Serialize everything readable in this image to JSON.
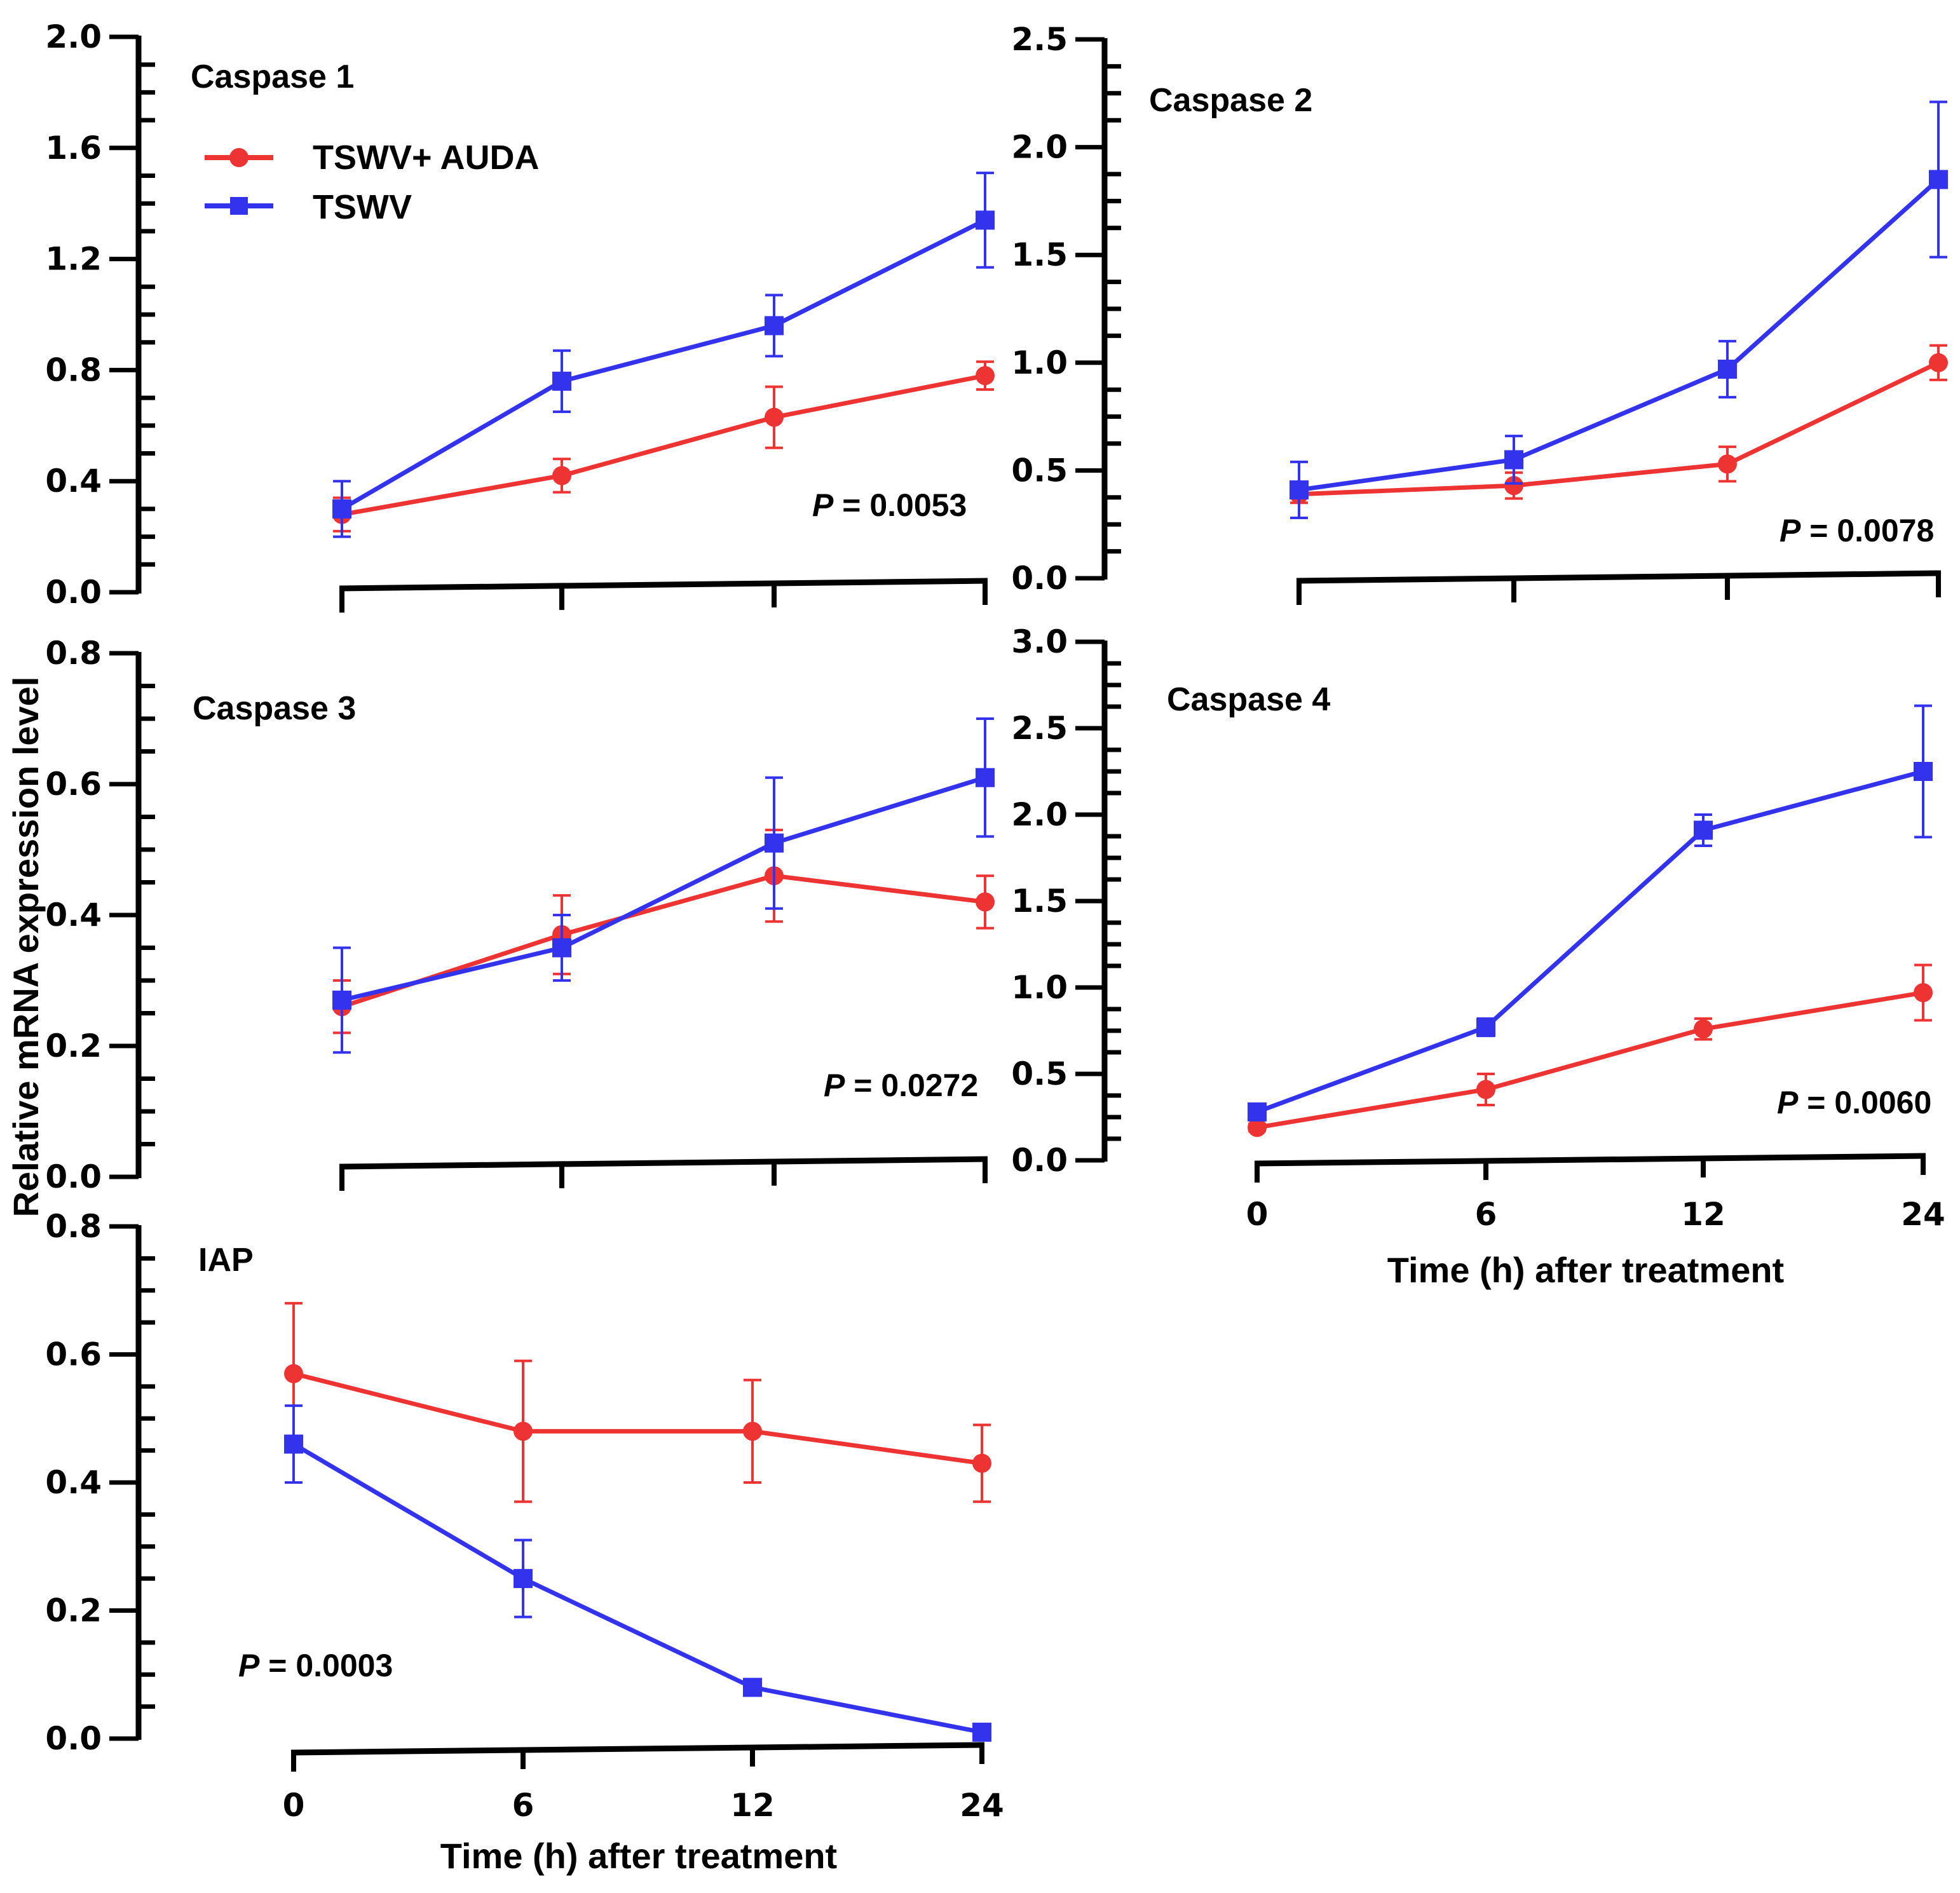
{
  "chart_data": {
    "y_axis_title": "Relative mRNA expression level",
    "x_axis_title": "Time (h) after treatment",
    "legend": [
      {
        "name": "TSWV+ AUDA",
        "color": "#ee3333",
        "marker": "circle"
      },
      {
        "name": "TSWV",
        "color": "#3333ee",
        "marker": "square"
      }
    ],
    "panels": [
      {
        "id": "caspase1",
        "type": "line",
        "title": "Caspase 1",
        "p_label": "P",
        "p_text": " = 0.0053",
        "x": [
          "0",
          "6",
          "12",
          "24"
        ],
        "show_x_tick_labels": false,
        "ylim": [
          0,
          2.0
        ],
        "yticks": [
          "0.0",
          "0.4",
          "0.8",
          "1.2",
          "1.6",
          "2.0"
        ],
        "series": [
          {
            "name": "TSWV+ AUDA",
            "values": [
              0.28,
              0.42,
              0.63,
              0.78
            ],
            "errors": [
              0.06,
              0.06,
              0.11,
              0.05
            ]
          },
          {
            "name": "TSWV",
            "values": [
              0.3,
              0.76,
              0.96,
              1.34
            ],
            "errors": [
              0.1,
              0.11,
              0.11,
              0.17
            ]
          }
        ]
      },
      {
        "id": "caspase2",
        "type": "line",
        "title": "Caspase 2",
        "p_label": "P",
        "p_text": " = 0.0078",
        "x": [
          "0",
          "6",
          "12",
          "24"
        ],
        "show_x_tick_labels": false,
        "ylim": [
          0,
          2.5
        ],
        "yticks": [
          "0.0",
          "0.5",
          "1.0",
          "1.5",
          "2.0",
          "2.5"
        ],
        "series": [
          {
            "name": "TSWV+ AUDA",
            "values": [
              0.39,
              0.43,
              0.53,
              1.0
            ],
            "errors": [
              0.04,
              0.06,
              0.08,
              0.08
            ]
          },
          {
            "name": "TSWV",
            "values": [
              0.41,
              0.55,
              0.97,
              1.85
            ],
            "errors": [
              0.13,
              0.11,
              0.13,
              0.36
            ]
          }
        ]
      },
      {
        "id": "caspase3",
        "type": "line",
        "title": "Caspase 3",
        "p_label": "P",
        "p_text": " = 0.0272",
        "x": [
          "0",
          "6",
          "12",
          "24"
        ],
        "show_x_tick_labels": false,
        "ylim": [
          0,
          0.8
        ],
        "yticks": [
          "0.0",
          "0.2",
          "0.4",
          "0.6",
          "0.8"
        ],
        "series": [
          {
            "name": "TSWV+ AUDA",
            "values": [
              0.26,
              0.37,
              0.46,
              0.42
            ],
            "errors": [
              0.04,
              0.06,
              0.07,
              0.04
            ]
          },
          {
            "name": "TSWV",
            "values": [
              0.27,
              0.35,
              0.51,
              0.61
            ],
            "errors": [
              0.08,
              0.05,
              0.1,
              0.09
            ]
          }
        ]
      },
      {
        "id": "caspase4",
        "type": "line",
        "title": "Caspase 4",
        "p_label": "P",
        "p_text": " = 0.0060",
        "x": [
          "0",
          "6",
          "12",
          "24"
        ],
        "show_x_tick_labels": true,
        "ylim": [
          0,
          3.0
        ],
        "yticks": [
          "0.0",
          "0.5",
          "1.0",
          "1.5",
          "2.0",
          "2.5",
          "3.0"
        ],
        "series": [
          {
            "name": "TSWV+ AUDA",
            "values": [
              0.19,
              0.41,
              0.76,
              0.97
            ],
            "errors": [
              0.02,
              0.09,
              0.06,
              0.16
            ]
          },
          {
            "name": "TSWV",
            "values": [
              0.28,
              0.77,
              1.91,
              2.25
            ],
            "errors": [
              0.02,
              0.05,
              0.09,
              0.38
            ]
          }
        ]
      },
      {
        "id": "iap",
        "type": "line",
        "title": "IAP",
        "p_label": "P",
        "p_text": " = 0.0003",
        "x": [
          "0",
          "6",
          "12",
          "24"
        ],
        "show_x_tick_labels": true,
        "ylim": [
          0,
          0.8
        ],
        "yticks": [
          "0.0",
          "0.2",
          "0.4",
          "0.6",
          "0.8"
        ],
        "series": [
          {
            "name": "TSWV+ AUDA",
            "values": [
              0.57,
              0.48,
              0.48,
              0.43
            ],
            "errors": [
              0.11,
              0.11,
              0.08,
              0.06
            ]
          },
          {
            "name": "TSWV",
            "values": [
              0.46,
              0.25,
              0.08,
              0.01
            ],
            "errors": [
              0.06,
              0.06,
              0.01,
              0.005
            ]
          }
        ]
      }
    ]
  }
}
